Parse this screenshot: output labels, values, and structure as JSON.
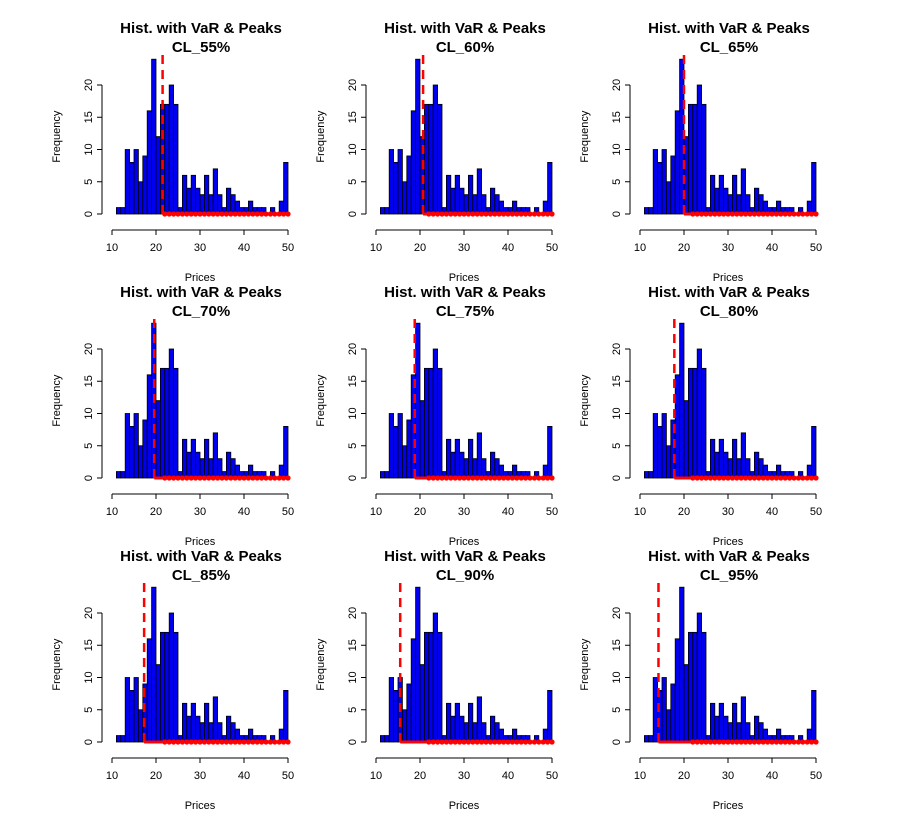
{
  "chart_data": {
    "type": "bar",
    "panel_title": "Hist. with VaR & Peaks",
    "xlabel": "Prices",
    "ylabel": "Frequency",
    "xlim": [
      10,
      50
    ],
    "ylim": [
      0,
      24
    ],
    "x_ticks": [
      10,
      20,
      30,
      40,
      50
    ],
    "y_ticks": [
      0,
      5,
      10,
      15,
      20
    ],
    "bar_color": "#0000ee",
    "var_line_color": "#ff0000",
    "peak_color": "#ff0000",
    "bins": {
      "starts": [
        11,
        12,
        13,
        14,
        15,
        16,
        17,
        18,
        19,
        20,
        21,
        22,
        23,
        24,
        25,
        26,
        27,
        28,
        29,
        30,
        31,
        32,
        33,
        34,
        35,
        36,
        37,
        38,
        39,
        40,
        41,
        42,
        43,
        44,
        45,
        46,
        47,
        48,
        49
      ],
      "width": 1,
      "counts": [
        1,
        1,
        10,
        8,
        10,
        5,
        9,
        16,
        24,
        12,
        17,
        17,
        20,
        17,
        1,
        6,
        4,
        6,
        4,
        3,
        6,
        3,
        7,
        3,
        1,
        4,
        3,
        2,
        1,
        1,
        2,
        1,
        1,
        1,
        0,
        1,
        0,
        2,
        8
      ]
    },
    "peak_points_x": [
      22,
      23,
      24,
      25,
      26,
      27,
      28,
      29,
      30,
      31,
      32,
      33,
      34,
      35,
      36,
      37,
      38,
      39,
      40,
      41,
      42,
      43,
      44,
      45,
      46,
      47,
      48,
      49,
      50
    ],
    "panels": [
      {
        "cl_label": "CL_55%",
        "var": 21.5
      },
      {
        "cl_label": "CL_60%",
        "var": 20.7
      },
      {
        "cl_label": "CL_65%",
        "var": 20.0
      },
      {
        "cl_label": "CL_70%",
        "var": 19.6
      },
      {
        "cl_label": "CL_75%",
        "var": 18.8
      },
      {
        "cl_label": "CL_80%",
        "var": 17.8
      },
      {
        "cl_label": "CL_85%",
        "var": 17.3
      },
      {
        "cl_label": "CL_90%",
        "var": 15.5
      },
      {
        "cl_label": "CL_95%",
        "var": 14.2
      }
    ]
  }
}
